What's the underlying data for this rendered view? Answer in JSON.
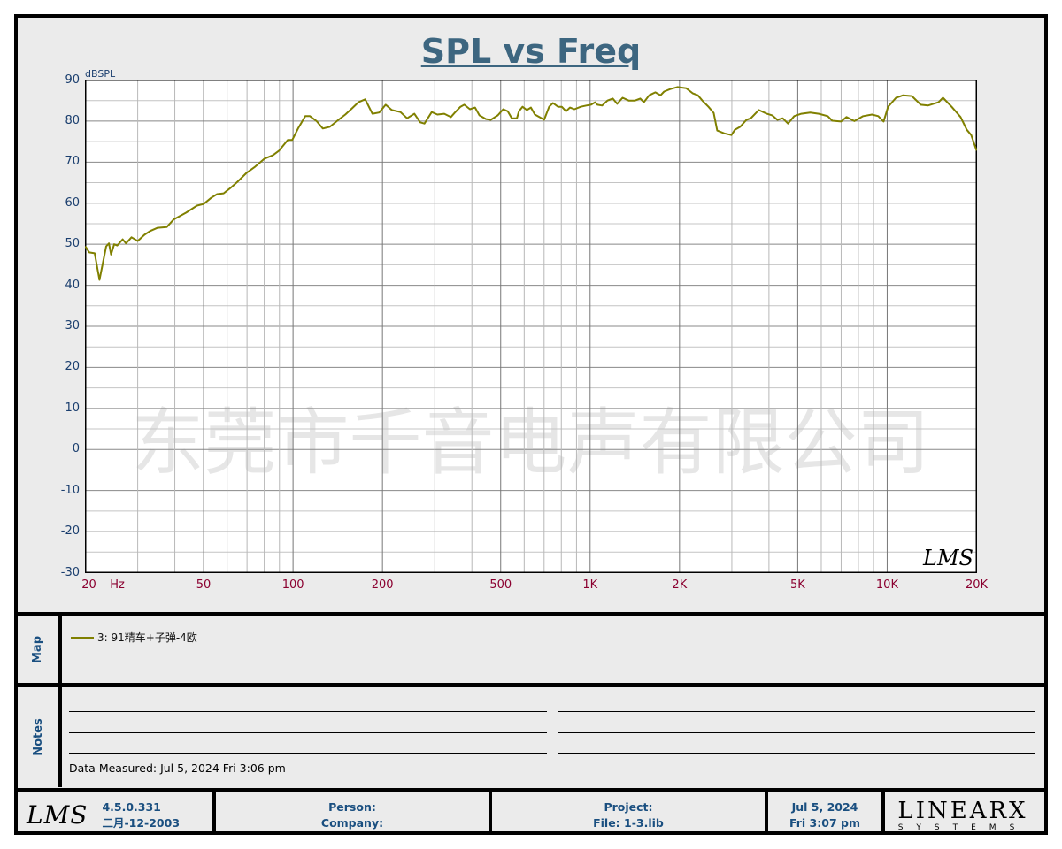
{
  "title": "SPL vs Freq",
  "watermark": "东莞市千音电声有限公司",
  "chart_data": {
    "type": "line",
    "title": "SPL vs Freq",
    "ylabel": "dBSPL",
    "xlabel": "Hz",
    "xscale": "log",
    "xlim": [
      20,
      20000
    ],
    "ylim": [
      -30,
      90
    ],
    "grid": true,
    "yticks": [
      "90",
      "80",
      "70",
      "60",
      "50",
      "40",
      "30",
      "20",
      "10",
      "0",
      "-10",
      "-20",
      "-30"
    ],
    "xticks": [
      {
        "v": 20,
        "label": "20"
      },
      {
        "v": 50,
        "label": "50"
      },
      {
        "v": 100,
        "label": "100"
      },
      {
        "v": 200,
        "label": "200"
      },
      {
        "v": 500,
        "label": "500"
      },
      {
        "v": 1000,
        "label": "1K"
      },
      {
        "v": 2000,
        "label": "2K"
      },
      {
        "v": 5000,
        "label": "5K"
      },
      {
        "v": 10000,
        "label": "10K"
      },
      {
        "v": 20000,
        "label": "20K"
      }
    ],
    "x_unit_label": "Hz",
    "series": [
      {
        "name": "3: 91精车+子弹-4欧",
        "color": "#808000",
        "x": [
          20,
          20.6,
          21.5,
          22.3,
          23.5,
          24,
          24.4,
          25,
          25.6,
          26.7,
          27.4,
          28.6,
          30,
          31.6,
          33,
          35,
          37.6,
          39.6,
          43.7,
          47.5,
          50,
          53,
          55.5,
          58.4,
          61.5,
          65,
          69.8,
          74.6,
          80,
          85.6,
          89.8,
          96,
          99.4,
          104,
          110,
          114,
          120,
          126,
          133,
          141,
          150,
          158,
          166,
          175,
          185,
          195,
          205,
          215,
          230,
          242,
          256,
          268,
          277,
          293,
          306,
          323,
          340,
          350,
          366,
          377,
          394,
          410,
          424,
          446,
          463,
          489,
          510,
          528,
          545,
          567,
          576,
          592,
          613,
          632,
          652,
          687,
          700,
          728,
          750,
          780,
          803,
          830,
          855,
          885,
          930,
          972,
          1007,
          1040,
          1059,
          1098,
          1144,
          1192,
          1234,
          1286,
          1349,
          1416,
          1476,
          1517,
          1581,
          1658,
          1727,
          1775,
          1862,
          1968,
          2108,
          2213,
          2305,
          2400,
          2502,
          2606,
          2679,
          2830,
          2990,
          3072,
          3200,
          3358,
          3476,
          3698,
          3936,
          4102,
          4270,
          4449,
          4636,
          4864,
          5140,
          5508,
          5888,
          6310,
          6532,
          6998,
          7294,
          7758,
          8300,
          8892,
          9332,
          9726,
          10070,
          10712,
          11310,
          12114,
          12972,
          13710,
          14894,
          15410,
          16482,
          17662,
          18536,
          19180,
          20000
        ],
        "y": [
          49.5,
          48,
          47.8,
          41.3,
          49.5,
          50.2,
          47.5,
          50,
          49.7,
          51.2,
          50.2,
          51.7,
          50.8,
          52.3,
          53.2,
          54,
          54.2,
          56,
          57.7,
          59.4,
          59.8,
          61.3,
          62.2,
          62.4,
          63.7,
          65.2,
          67.4,
          68.9,
          70.8,
          71.7,
          72.8,
          75.4,
          75.4,
          78.2,
          81.2,
          81.2,
          80,
          78.2,
          78.6,
          80.1,
          81.6,
          83.1,
          84.6,
          85.3,
          81.8,
          82.1,
          84,
          82.7,
          82.2,
          80.7,
          81.8,
          79.7,
          79.4,
          82.2,
          81.6,
          81.8,
          81,
          82,
          83.5,
          84,
          82.9,
          83.3,
          81.4,
          80.5,
          80.3,
          81.4,
          82.9,
          82.4,
          80.7,
          80.7,
          82.4,
          83.5,
          82.7,
          83.3,
          81.6,
          80.7,
          80.3,
          83.5,
          84.4,
          83.5,
          83.5,
          82.4,
          83.3,
          82.9,
          83.5,
          83.8,
          84,
          84.6,
          84,
          83.8,
          85,
          85.5,
          84.2,
          85.7,
          85,
          85,
          85.5,
          84.6,
          86.3,
          87,
          86.3,
          87.2,
          87.8,
          88.3,
          88,
          86.8,
          86.3,
          84.8,
          83.5,
          82,
          77.7,
          77,
          76.6,
          77.9,
          78.6,
          80.3,
          80.7,
          82.7,
          81.8,
          81.4,
          80.3,
          80.7,
          79.4,
          81.2,
          81.8,
          82.1,
          81.8,
          81.2,
          80.1,
          79.9,
          81,
          80,
          81.2,
          81.6,
          81.2,
          79.9,
          83.5,
          85.7,
          86.3,
          86.1,
          84,
          83.8,
          84.6,
          85.7,
          83.5,
          81,
          77.9,
          76.6,
          72.8
        ]
      }
    ]
  },
  "map": {
    "label": "Map",
    "legend": "3: 91精车+子弹-4欧"
  },
  "notes": {
    "label": "Notes",
    "measured": "Data Measured: Jul  5, 2024  Fri  3:06 pm"
  },
  "footer": {
    "logo": "LMS",
    "version": "4.5.0.331",
    "build_date": "二月-12-2003",
    "person": "Person:",
    "company": "Company:",
    "project": "Project:",
    "file": "File: 1-3.lib",
    "date": "Jul  5, 2024",
    "time": "Fri  3:07 pm",
    "brand": "LINEARX",
    "brand_sub": "SYSTEMS"
  }
}
